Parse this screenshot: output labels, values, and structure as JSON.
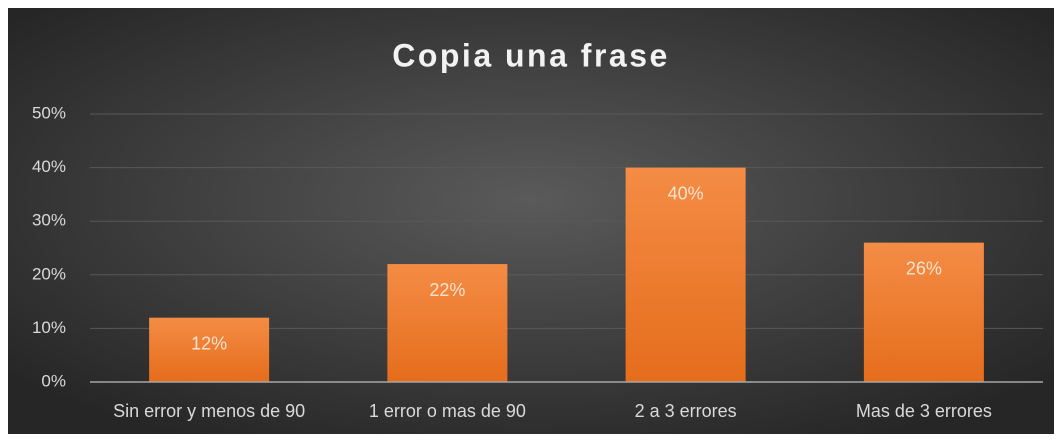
{
  "chart_data": {
    "type": "bar",
    "title": "Copia una frase",
    "categories": [
      "Sin error y menos de 90",
      "1 error o mas de 90",
      "2 a 3 errores",
      "Mas de 3 errores"
    ],
    "values": [
      12,
      22,
      40,
      26
    ],
    "value_labels": [
      "12%",
      "22%",
      "40%",
      "26%"
    ],
    "color": "#f07d2e",
    "ylim": [
      0,
      50
    ],
    "yticks": [
      {
        "value": 0,
        "label": "0%"
      },
      {
        "value": 10,
        "label": "10%"
      },
      {
        "value": 20,
        "label": "20%"
      },
      {
        "value": 30,
        "label": "30%"
      },
      {
        "value": 40,
        "label": "40%"
      },
      {
        "value": 50,
        "label": "50%"
      }
    ],
    "grid": true
  }
}
